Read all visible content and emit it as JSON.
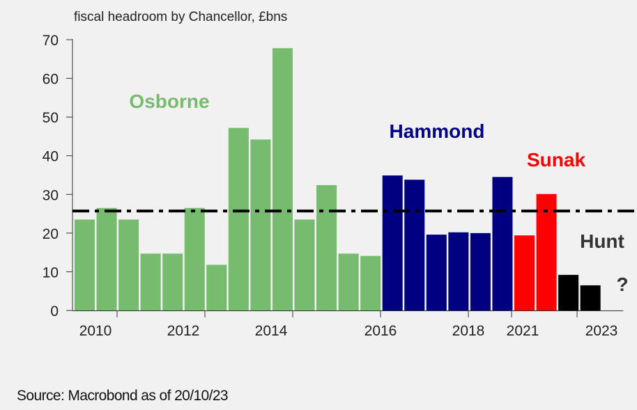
{
  "chart_data": {
    "type": "bar",
    "title": "fiscal headroom by Chancellor, £bns",
    "ylabel": "£bns",
    "ylim": [
      0,
      70
    ],
    "yticks": [
      0,
      10,
      20,
      30,
      40,
      50,
      60,
      70
    ],
    "xtick_labels": [
      "2010",
      "2012",
      "2014",
      "2016",
      "2018",
      "2021",
      "2023"
    ],
    "reference_line": {
      "value": 25.7,
      "style": "dash-dot"
    },
    "series": [
      {
        "name": "Osborne",
        "color": "#77bb6f",
        "values": [
          23.5,
          26.5,
          23.5,
          14.7,
          14.7,
          26.5,
          11.8,
          47.2,
          44.2,
          67.8,
          23.5,
          32.4,
          14.7,
          14.1
        ]
      },
      {
        "name": "Hammond",
        "color": "#000080",
        "values": [
          34.9,
          33.8,
          19.6,
          20.2,
          20.0,
          34.5
        ]
      },
      {
        "name": "Sunak",
        "color": "#ff0000",
        "values": [
          19.4,
          30.1
        ]
      },
      {
        "name": "Hunt",
        "color": "#000000",
        "values": [
          9.2,
          6.5
        ]
      }
    ],
    "annotations": [
      {
        "text": "Osborne",
        "color": "#77bb6f"
      },
      {
        "text": "Hammond",
        "color": "#000080"
      },
      {
        "text": "Sunak",
        "color": "#ff0000"
      },
      {
        "text": "Hunt",
        "color": "#333333"
      },
      {
        "text": "?",
        "color": "#333333"
      }
    ]
  },
  "source": "Source: Macrobond as of 20/10/23"
}
